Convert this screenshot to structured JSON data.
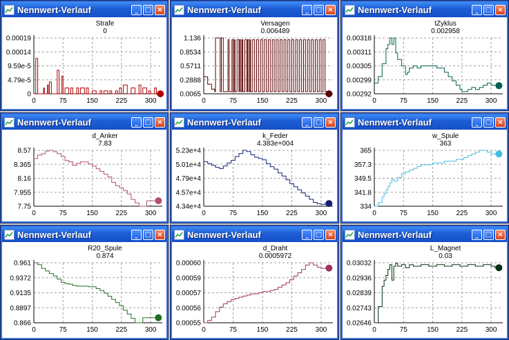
{
  "windows": [
    {
      "title": "Nennwert-Verlauf",
      "series_name": "Strafe",
      "current_value": "0",
      "color": "#b00000",
      "chart_data": {
        "type": "line",
        "title": "Strafe",
        "y_ticks": [
          "0.00019",
          "0.00014",
          "9.59e-5",
          "4.79e-5",
          "0"
        ],
        "x_ticks": [
          "0",
          "75",
          "150",
          "225",
          "300"
        ],
        "xlim": [
          0,
          330
        ],
        "ylim": [
          0,
          0.00019
        ],
        "x": [
          0,
          5,
          10,
          14,
          20,
          25,
          27,
          30,
          35,
          37,
          40,
          45,
          55,
          60,
          65,
          70,
          72,
          75,
          80,
          90,
          95,
          100,
          110,
          115,
          120,
          130,
          135,
          140,
          150,
          160,
          170,
          175,
          180,
          190,
          195,
          200,
          210,
          215,
          220,
          225,
          230,
          240,
          250,
          260,
          270,
          275,
          280,
          290,
          295,
          300,
          310,
          315,
          320,
          325
        ],
        "y": [
          0,
          0.00012,
          0.0,
          0.0,
          0.0,
          2e-05,
          0.0,
          0.0,
          3e-05,
          0.0,
          4e-05,
          0.0,
          0.0,
          8e-05,
          0.0,
          0.0,
          6e-05,
          0.0,
          2e-05,
          0.0,
          2e-05,
          0.0,
          2e-05,
          0.0,
          2e-05,
          0.0,
          2e-05,
          0.0,
          1e-05,
          0.0,
          1e-05,
          0.0,
          1e-05,
          0.0,
          1e-05,
          0.0,
          1e-05,
          0.0,
          2e-05,
          0.0,
          3e-05,
          0.0,
          2e-05,
          0.0,
          3e-05,
          0.0,
          2e-05,
          0.0,
          1e-05,
          0.0,
          2e-05,
          0.0,
          0.0,
          0.0
        ]
      }
    },
    {
      "title": "Nennwert-Verlauf",
      "series_name": "Versagen",
      "current_value": "0.006489",
      "color": "#5a0000",
      "chart_data": {
        "type": "line",
        "title": "Versagen",
        "y_ticks": [
          "1.136",
          "0.8534",
          "0.5711",
          "0.2888",
          "0.0065"
        ],
        "x_ticks": [
          "0",
          "75",
          "150",
          "225",
          "300"
        ],
        "xlim": [
          0,
          330
        ],
        "ylim": [
          0.0065,
          1.136
        ],
        "x": [
          0,
          10,
          20,
          28,
          30,
          40,
          42,
          45,
          50,
          55,
          60,
          62,
          65,
          70,
          72,
          75,
          78,
          80,
          85,
          90,
          92,
          95,
          98,
          100,
          105,
          110,
          112,
          115,
          118,
          120,
          125,
          130,
          135,
          140,
          145,
          150,
          155,
          160,
          165,
          170,
          175,
          180,
          185,
          190,
          195,
          200,
          205,
          210,
          215,
          220,
          225,
          230,
          235,
          240,
          245,
          250,
          255,
          260,
          265,
          270,
          275,
          280,
          285,
          290,
          295,
          300,
          305,
          310,
          320
        ],
        "y": [
          0.35,
          0.2,
          0.1,
          0.05,
          1.136,
          1.136,
          0.05,
          1.136,
          0.05,
          0.05,
          0.05,
          1.1,
          0.05,
          0.05,
          1.1,
          0.05,
          1.1,
          0.05,
          1.1,
          0.05,
          1.1,
          0.05,
          1.1,
          0.05,
          1.1,
          0.05,
          1.1,
          0.05,
          1.1,
          0.05,
          1.1,
          0.05,
          1.1,
          0.05,
          1.1,
          0.05,
          1.1,
          0.05,
          1.1,
          0.05,
          1.1,
          0.05,
          1.1,
          0.05,
          1.1,
          0.05,
          1.1,
          0.05,
          1.1,
          0.05,
          1.1,
          0.05,
          1.1,
          0.05,
          1.1,
          0.05,
          1.1,
          0.05,
          1.1,
          0.05,
          1.1,
          0.05,
          1.1,
          0.05,
          1.1,
          0.05,
          1.1,
          0.05,
          0.006489
        ]
      }
    },
    {
      "title": "Nennwert-Verlauf",
      "series_name": "tZyklus",
      "current_value": "0.002958",
      "color": "#006050",
      "chart_data": {
        "type": "line",
        "title": "tZyklus",
        "y_ticks": [
          "0.00318",
          "0.00311",
          "0.00305",
          "0.00299",
          "0.00292"
        ],
        "x_ticks": [
          "0",
          "75",
          "150",
          "225",
          "300"
        ],
        "xlim": [
          0,
          330
        ],
        "ylim": [
          0.00292,
          0.00318
        ],
        "x": [
          0,
          10,
          20,
          30,
          35,
          40,
          45,
          50,
          55,
          60,
          70,
          80,
          85,
          90,
          100,
          110,
          120,
          140,
          160,
          180,
          190,
          200,
          210,
          220,
          225,
          230,
          240,
          250,
          260,
          270,
          280,
          290,
          300,
          310,
          320
        ],
        "y": [
          0.00297,
          0.003,
          0.00306,
          0.00313,
          0.00315,
          0.00318,
          0.00315,
          0.00318,
          0.00311,
          0.00308,
          0.00305,
          0.00301,
          0.00302,
          0.00304,
          0.00305,
          0.00304,
          0.00305,
          0.00305,
          0.00304,
          0.00302,
          0.003,
          0.00298,
          0.00296,
          0.00294,
          0.00293,
          0.00293,
          0.00294,
          0.00295,
          0.00294,
          0.00295,
          0.00296,
          0.00297,
          0.00296,
          0.00296,
          0.002958
        ]
      }
    },
    {
      "title": "Nennwert-Verlauf",
      "series_name": "d_Anker",
      "current_value": "7.83",
      "color": "#b05070",
      "chart_data": {
        "type": "line",
        "title": "d_Anker",
        "y_ticks": [
          "8.57",
          "8.365",
          "8.16",
          "7.955",
          "7.75"
        ],
        "x_ticks": [
          "0",
          "75",
          "150",
          "225",
          "300"
        ],
        "xlim": [
          0,
          330
        ],
        "ylim": [
          7.75,
          8.57
        ],
        "x": [
          0,
          10,
          20,
          30,
          40,
          50,
          60,
          70,
          80,
          90,
          100,
          110,
          120,
          130,
          140,
          150,
          160,
          170,
          180,
          190,
          200,
          210,
          220,
          230,
          240,
          250,
          260,
          270,
          280,
          290,
          300,
          310,
          320
        ],
        "y": [
          8.45,
          8.5,
          8.52,
          8.56,
          8.57,
          8.55,
          8.52,
          8.48,
          8.42,
          8.4,
          8.35,
          8.38,
          8.4,
          8.4,
          8.37,
          8.34,
          8.3,
          8.26,
          8.22,
          8.18,
          8.1,
          8.05,
          8.02,
          7.98,
          7.93,
          7.85,
          7.8,
          7.75,
          7.75,
          7.83,
          7.83,
          7.83,
          7.83
        ]
      }
    },
    {
      "title": "Nennwert-Verlauf",
      "series_name": "k_Feder",
      "current_value": "4.383e+004",
      "color": "#102070",
      "chart_data": {
        "type": "line",
        "title": "k_Feder",
        "y_ticks": [
          "5.23e+4",
          "5.01e+4",
          "4.79e+4",
          "4.57e+4",
          "4.34e+4"
        ],
        "x_ticks": [
          "0",
          "75",
          "150",
          "225",
          "300"
        ],
        "xlim": [
          0,
          330
        ],
        "ylim": [
          43400,
          52300
        ],
        "x": [
          0,
          10,
          20,
          30,
          40,
          50,
          60,
          70,
          80,
          90,
          100,
          110,
          120,
          130,
          140,
          150,
          160,
          170,
          180,
          190,
          200,
          210,
          220,
          230,
          240,
          250,
          260,
          270,
          280,
          290,
          300,
          310,
          320
        ],
        "y": [
          50500,
          50200,
          49900,
          49600,
          49400,
          49800,
          50300,
          50700,
          51300,
          51800,
          52300,
          52100,
          51600,
          51200,
          51000,
          50800,
          50200,
          49700,
          49300,
          48700,
          48200,
          47600,
          47000,
          46500,
          46000,
          45500,
          45000,
          44500,
          44000,
          43800,
          43700,
          43830,
          43830
        ]
      }
    },
    {
      "title": "Nennwert-Verlauf",
      "series_name": "w_Spule",
      "current_value": "363",
      "color": "#40c0e0",
      "chart_data": {
        "type": "line",
        "title": "w_Spule",
        "y_ticks": [
          "365",
          "357.3",
          "349.5",
          "341.8",
          "334"
        ],
        "x_ticks": [
          "0",
          "75",
          "150",
          "225",
          "300"
        ],
        "xlim": [
          0,
          330
        ],
        "ylim": [
          334,
          365
        ],
        "x": [
          0,
          10,
          20,
          25,
          30,
          35,
          40,
          45,
          50,
          60,
          70,
          80,
          90,
          100,
          110,
          120,
          130,
          150,
          170,
          180,
          190,
          200,
          210,
          220,
          230,
          240,
          250,
          260,
          270,
          280,
          290,
          300,
          310,
          320
        ],
        "y": [
          334,
          336,
          339,
          341,
          343,
          345,
          347,
          349,
          348,
          350,
          352,
          353,
          354,
          355,
          356,
          357,
          357,
          358,
          358,
          359,
          359,
          359,
          360,
          360,
          361,
          362,
          363,
          364,
          365,
          365,
          364,
          363,
          363,
          363
        ]
      }
    },
    {
      "title": "Nennwert-Verlauf",
      "series_name": "R20_Spule",
      "current_value": "0.874",
      "color": "#207020",
      "chart_data": {
        "type": "line",
        "title": "R20_Spule",
        "y_ticks": [
          "0.961",
          "0.9372",
          "0.9135",
          "0.8897",
          "0.866"
        ],
        "x_ticks": [
          "0",
          "75",
          "150",
          "225",
          "300"
        ],
        "xlim": [
          0,
          330
        ],
        "ylim": [
          0.866,
          0.961
        ],
        "x": [
          0,
          10,
          20,
          30,
          40,
          50,
          60,
          70,
          80,
          90,
          100,
          110,
          120,
          140,
          160,
          170,
          180,
          190,
          200,
          210,
          220,
          230,
          240,
          250,
          260,
          270,
          280,
          290,
          300,
          310,
          320
        ],
        "y": [
          0.961,
          0.958,
          0.952,
          0.948,
          0.944,
          0.94,
          0.935,
          0.93,
          0.928,
          0.927,
          0.925,
          0.924,
          0.924,
          0.923,
          0.92,
          0.917,
          0.913,
          0.908,
          0.903,
          0.898,
          0.893,
          0.886,
          0.88,
          0.873,
          0.866,
          0.866,
          0.874,
          0.874,
          0.874,
          0.874,
          0.874
        ]
      }
    },
    {
      "title": "Nennwert-Verlauf",
      "series_name": "d_Draht",
      "current_value": "0.0005972",
      "color": "#a03060",
      "chart_data": {
        "type": "line",
        "title": "d_Draht",
        "y_ticks": [
          "0.00060",
          "0.00059",
          "0.00057",
          "0.00056",
          "0.00055"
        ],
        "x_ticks": [
          "0",
          "75",
          "150",
          "225",
          "300"
        ],
        "xlim": [
          0,
          330
        ],
        "ylim": [
          0.000548,
          0.000602
        ],
        "x": [
          0,
          10,
          20,
          30,
          40,
          50,
          60,
          70,
          80,
          90,
          100,
          110,
          120,
          130,
          140,
          150,
          160,
          170,
          180,
          190,
          200,
          210,
          220,
          230,
          240,
          250,
          260,
          270,
          280,
          290,
          300,
          310,
          320
        ],
        "y": [
          0.000548,
          0.00055,
          0.000553,
          0.000558,
          0.000562,
          0.000565,
          0.000567,
          0.000569,
          0.00057,
          0.000571,
          0.000572,
          0.000573,
          0.000574,
          0.000574,
          0.000575,
          0.000576,
          0.000576,
          0.000577,
          0.000578,
          0.00058,
          0.000582,
          0.000584,
          0.000587,
          0.00059,
          0.000593,
          0.000596,
          0.0006,
          0.000602,
          0.0006,
          0.000598,
          0.000597,
          0.000597,
          0.0005972
        ]
      }
    },
    {
      "title": "Nennwert-Verlauf",
      "series_name": "L_Magnet",
      "current_value": "0.03",
      "color": "#003010",
      "chart_data": {
        "type": "line",
        "title": "L_Magnet",
        "y_ticks": [
          "0.03032",
          "0.02936",
          "0.02839",
          "0.02743",
          "0.02646"
        ],
        "x_ticks": [
          "0",
          "75",
          "150",
          "225",
          "300"
        ],
        "xlim": [
          0,
          330
        ],
        "ylim": [
          0.02646,
          0.03032
        ],
        "x": [
          0,
          10,
          20,
          25,
          30,
          35,
          40,
          45,
          50,
          55,
          60,
          70,
          80,
          90,
          100,
          120,
          140,
          160,
          180,
          200,
          220,
          240,
          260,
          280,
          300,
          310,
          320
        ],
        "y": [
          0.02646,
          0.0275,
          0.0288,
          0.0292,
          0.0295,
          0.0299,
          0.0302,
          0.0292,
          0.0301,
          0.0303,
          0.0301,
          0.0302,
          0.03,
          0.0302,
          0.0301,
          0.0302,
          0.0301,
          0.0302,
          0.0301,
          0.0302,
          0.0301,
          0.0302,
          0.0301,
          0.0302,
          0.0301,
          0.03,
          0.03
        ]
      }
    }
  ]
}
